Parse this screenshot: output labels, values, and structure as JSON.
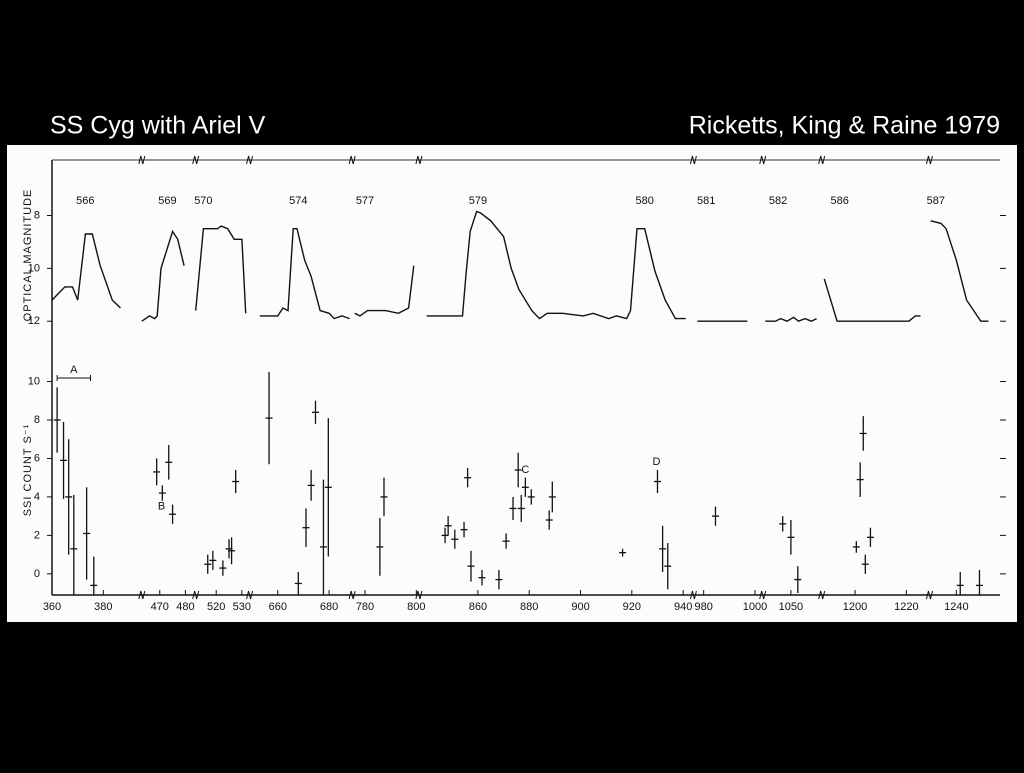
{
  "header": {
    "title": "SS Cyg with Ariel V",
    "citation": "Ricketts, King & Raine 1979"
  },
  "chart_data": [
    {
      "type": "line",
      "ylabel": "OPTICAL MAGNITUDE",
      "ylim": [
        12.9,
        5.9
      ],
      "yticks": [
        8,
        10,
        12
      ],
      "annotations": [
        {
          "text": "566",
          "x": 373
        },
        {
          "text": "569",
          "x": 473
        },
        {
          "text": "570",
          "x": 515
        },
        {
          "text": "574",
          "x": 668
        },
        {
          "text": "577",
          "x": 780
        },
        {
          "text": "579",
          "x": 860
        },
        {
          "text": "580",
          "x": 925
        },
        {
          "text": "581",
          "x": 981
        },
        {
          "text": "582",
          "x": 1045
        },
        {
          "text": "586",
          "x": 1194
        },
        {
          "text": "587",
          "x": 1232
        }
      ],
      "curves": [
        {
          "x": [
            360,
            365,
            368,
            370,
            373,
            375.7,
            378.8,
            383.5,
            386.7
          ],
          "y": [
            11.2,
            10.7,
            10.7,
            11.2,
            8.7,
            8.7,
            9.9,
            11.2,
            11.5
          ]
        },
        {
          "x": [
            463,
            466,
            468,
            469,
            470.5,
            475,
            477,
            479.5
          ],
          "y": [
            12.0,
            11.8,
            11.9,
            11.8,
            10,
            8.6,
            8.9,
            9.9
          ]
        },
        {
          "x": [
            512,
            515,
            520.5,
            522,
            524.5,
            527,
            530,
            531.5
          ],
          "y": [
            11.6,
            8.5,
            8.5,
            8.4,
            8.5,
            8.9,
            8.9,
            11.7
          ]
        },
        {
          "x": [
            653,
            660,
            662,
            664,
            666,
            667.5,
            670.5,
            673,
            676.5,
            680,
            682,
            685,
            688
          ],
          "y": [
            11.8,
            11.8,
            11.5,
            11.6,
            8.5,
            8.5,
            9.7,
            10.3,
            11.6,
            11.7,
            11.9,
            11.8,
            11.9
          ]
        },
        {
          "x": [
            776,
            778,
            781,
            788,
            793,
            797,
            799
          ],
          "y": [
            11.7,
            11.8,
            11.6,
            11.6,
            11.7,
            11.5,
            9.9
          ]
        },
        {
          "x": [
            840,
            854,
            855.5,
            857,
            859.5,
            861,
            865,
            870,
            873,
            876,
            881,
            884,
            887,
            893,
            901,
            905,
            911,
            914,
            918,
            919.5,
            922,
            925,
            929,
            933,
            937,
            941
          ],
          "y": [
            11.8,
            11.8,
            10.1,
            8.6,
            7.85,
            7.9,
            8.2,
            8.8,
            10,
            10.8,
            11.6,
            11.9,
            11.7,
            11.7,
            11.8,
            11.7,
            11.9,
            11.8,
            11.9,
            11.6,
            8.5,
            8.5,
            10.1,
            11.2,
            11.9,
            11.9
          ]
        },
        {
          "x": [
            977.5,
            997
          ],
          "y": [
            12.0,
            12.0
          ]
        },
        {
          "x": [
            1040,
            1044,
            1046,
            1048.5,
            1051,
            1053,
            1055.5,
            1058,
            1060
          ],
          "y": [
            12.0,
            12.0,
            11.9,
            12.0,
            11.85,
            12.0,
            11.9,
            12.0,
            11.9
          ]
        },
        {
          "x": [
            1188,
            1193,
            1207,
            1221,
            1223.5,
            1225.5
          ],
          "y": [
            10.4,
            12.0,
            12.0,
            12.0,
            11.8,
            11.8
          ]
        },
        {
          "x": [
            1230,
            1234,
            1236,
            1240,
            1244,
            1249.5,
            1252.5
          ],
          "y": [
            8.2,
            8.3,
            8.5,
            9.7,
            11.2,
            12.0,
            12.0
          ]
        }
      ]
    },
    {
      "type": "errorbar",
      "ylabel": "SSI COUNT S⁻¹",
      "ylim": [
        -1.1,
        11.9
      ],
      "yticks": [
        0,
        2,
        4,
        6,
        8,
        10
      ],
      "x_segments": [
        {
          "xlim": [
            360,
            395
          ],
          "xticks": [
            360,
            380
          ]
        },
        {
          "xlim": [
            463,
            484
          ],
          "xticks": [
            470,
            480
          ]
        },
        {
          "xlim": [
            512,
            533
          ],
          "xticks": [
            520,
            530
          ]
        },
        {
          "xlim": [
            649,
            689
          ],
          "xticks": [
            660,
            680
          ]
        },
        {
          "xlim": [
            775,
            801
          ],
          "xticks": [
            780,
            800
          ]
        },
        {
          "xlim": [
            837,
            944
          ],
          "xticks": [
            860,
            880,
            900,
            920,
            940
          ]
        },
        {
          "xlim": [
            976,
            1003
          ],
          "xticks": [
            980,
            1000
          ]
        },
        {
          "xlim": [
            1039,
            1062
          ],
          "xticks": [
            1050
          ]
        },
        {
          "xlim": [
            1187,
            1229
          ],
          "xticks": [
            1200,
            1220
          ]
        },
        {
          "xlim": [
            1229.5,
            1257
          ],
          "xticks": [
            1240
          ]
        }
      ],
      "annotations": [
        {
          "text": "A",
          "x": 368.5,
          "y": 10.6,
          "span": [
            362,
            375
          ]
        },
        {
          "text": "B",
          "x": 470.7,
          "y": 3.5
        },
        {
          "text": "C",
          "x": 878.5,
          "y": 5.4
        },
        {
          "text": "D",
          "x": 929.6,
          "y": 5.8
        }
      ],
      "x": [
        362,
        364.5,
        366.5,
        368.5,
        373.5,
        376.3,
        468.8,
        471,
        473.5,
        475,
        516.7,
        518.7,
        522.6,
        525,
        526,
        527.6,
        656.6,
        668,
        671,
        673,
        674.7,
        677.8,
        679.7,
        785.8,
        787.4,
        847.2,
        848.4,
        851,
        854.6,
        856,
        857.3,
        861.6,
        868.2,
        871,
        873.7,
        875.7,
        876.9,
        878.5,
        880.8,
        887.8,
        889,
        916.4,
        930,
        932,
        934,
        984.6,
        1046.8,
        1050,
        1052.7,
        1200.5,
        1202,
        1203.2,
        1204,
        1206,
        1241.5,
        1249
      ],
      "y": [
        8,
        5.9,
        4,
        1.3,
        2.1,
        -0.6,
        5.3,
        4.2,
        5.8,
        3.1,
        0.5,
        0.7,
        0.3,
        1.3,
        1.2,
        4.8,
        8.1,
        -0.5,
        2.4,
        4.6,
        8.4,
        1.4,
        4.5,
        1.4,
        4,
        2,
        2.5,
        1.8,
        2.3,
        5,
        0.4,
        -0.2,
        -0.3,
        1.7,
        3.4,
        5.4,
        3.4,
        4.5,
        4,
        2.8,
        4,
        1.1,
        4.8,
        1.3,
        0.4,
        3,
        2.6,
        1.9,
        -0.3,
        1.4,
        4.9,
        7.3,
        0.5,
        1.9,
        -0.6,
        -0.6
      ],
      "err": [
        1.7,
        2,
        3,
        2.8,
        2.4,
        1.5,
        0.7,
        0.4,
        0.9,
        0.5,
        0.5,
        0.5,
        0.4,
        0.5,
        0.7,
        0.6,
        2.4,
        0.6,
        1,
        0.8,
        0.6,
        3.5,
        3.6,
        1.5,
        1,
        0.4,
        0.5,
        0.5,
        0.4,
        0.5,
        0.8,
        0.4,
        0.5,
        0.4,
        0.6,
        0.9,
        0.7,
        0.5,
        0.4,
        0.5,
        0.8,
        0.2,
        0.6,
        1.2,
        1.2,
        0.5,
        0.4,
        0.9,
        0.7,
        0.3,
        0.9,
        0.9,
        0.5,
        0.5,
        0.7,
        0.8
      ]
    }
  ]
}
